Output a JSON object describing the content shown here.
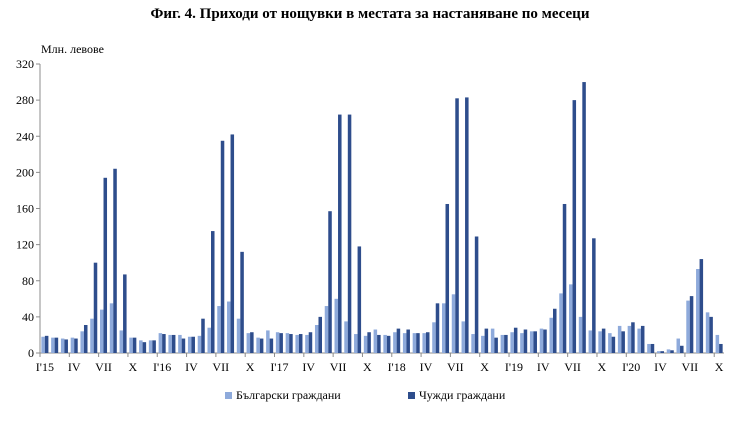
{
  "chart_data": {
    "type": "bar",
    "title": "Фиг. 4. Приходи от нощувки в местата за настаняване по месеци",
    "ylabel": "Млн. левове",
    "xlabel": "",
    "ylim": [
      0,
      320
    ],
    "yticks": [
      0,
      40,
      80,
      120,
      160,
      200,
      240,
      280,
      320
    ],
    "grid": false,
    "legend_position": "bottom",
    "tick_labels": [
      {
        "index": 0,
        "label": "I'15"
      },
      {
        "index": 3,
        "label": "IV"
      },
      {
        "index": 6,
        "label": "VII"
      },
      {
        "index": 9,
        "label": "X"
      },
      {
        "index": 12,
        "label": "I'16"
      },
      {
        "index": 15,
        "label": "IV"
      },
      {
        "index": 18,
        "label": "VII"
      },
      {
        "index": 21,
        "label": "X"
      },
      {
        "index": 24,
        "label": "I'17"
      },
      {
        "index": 27,
        "label": "IV"
      },
      {
        "index": 30,
        "label": "VII"
      },
      {
        "index": 33,
        "label": "X"
      },
      {
        "index": 36,
        "label": "I'18"
      },
      {
        "index": 39,
        "label": "IV"
      },
      {
        "index": 42,
        "label": "VII"
      },
      {
        "index": 45,
        "label": "X"
      },
      {
        "index": 48,
        "label": "I'19"
      },
      {
        "index": 51,
        "label": "IV"
      },
      {
        "index": 54,
        "label": "VII"
      },
      {
        "index": 57,
        "label": "X"
      },
      {
        "index": 60,
        "label": "I'20"
      },
      {
        "index": 63,
        "label": "IV"
      },
      {
        "index": 66,
        "label": "VII"
      },
      {
        "index": 69,
        "label": "X"
      }
    ],
    "series": [
      {
        "name": "Български граждани",
        "color": "#8eaadb",
        "values": [
          18,
          17,
          16,
          17,
          24,
          38,
          48,
          55,
          25,
          17,
          14,
          14,
          22,
          20,
          20,
          18,
          19,
          28,
          52,
          57,
          38,
          22,
          17,
          25,
          23,
          22,
          20,
          20,
          31,
          52,
          60,
          35,
          21,
          19,
          26,
          20,
          23,
          22,
          22,
          22,
          34,
          55,
          65,
          35,
          21,
          19,
          27,
          20,
          23,
          22,
          24,
          27,
          39,
          66,
          76,
          40,
          25,
          24,
          22,
          30,
          30,
          27,
          10,
          2,
          4,
          16,
          58,
          93,
          45,
          20
        ]
      },
      {
        "name": "Чужди граждани",
        "color": "#2e4d8c",
        "values": [
          19,
          17,
          15,
          16,
          31,
          100,
          194,
          204,
          87,
          17,
          12,
          14,
          21,
          20,
          16,
          18,
          38,
          135,
          235,
          242,
          112,
          23,
          16,
          16,
          22,
          21,
          21,
          23,
          40,
          157,
          264,
          264,
          118,
          23,
          20,
          19,
          27,
          26,
          22,
          23,
          55,
          165,
          282,
          283,
          129,
          27,
          17,
          20,
          28,
          26,
          24,
          26,
          49,
          165,
          280,
          300,
          127,
          27,
          18,
          24,
          34,
          30,
          10,
          2,
          3,
          8,
          63,
          104,
          40,
          10
        ]
      }
    ]
  }
}
